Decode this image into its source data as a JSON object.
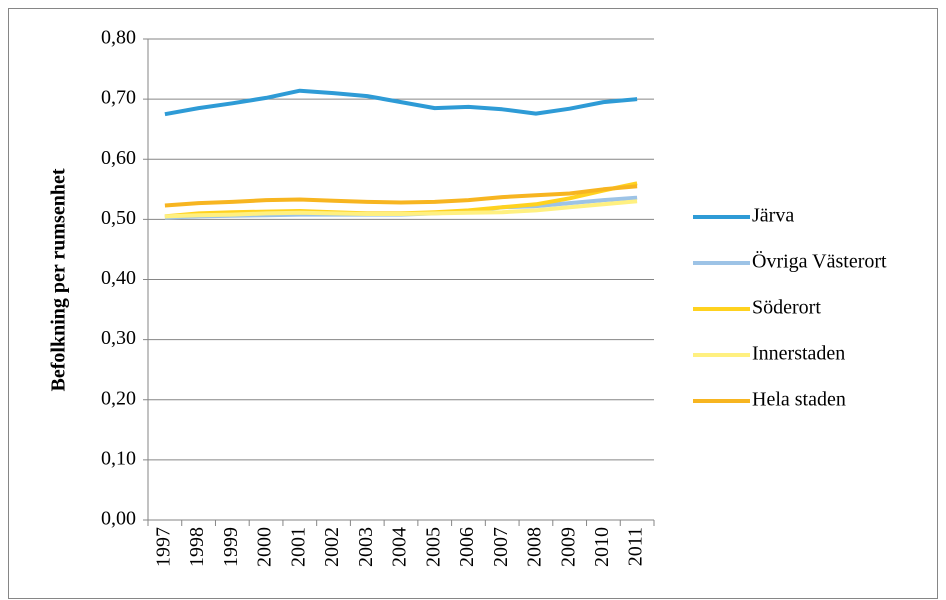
{
  "chart_data": {
    "type": "line",
    "y_label": "Befolkning per rumsenhet",
    "categories": [
      "1997",
      "1998",
      "1999",
      "2000",
      "2001",
      "2002",
      "2003",
      "2004",
      "2005",
      "2006",
      "2007",
      "2008",
      "2009",
      "2010",
      "2011"
    ],
    "series": [
      {
        "name": "Järva",
        "color": "#2e9bd6",
        "values": [
          0.675,
          0.685,
          0.693,
          0.702,
          0.714,
          0.71,
          0.705,
          0.695,
          0.685,
          0.687,
          0.683,
          0.676,
          0.684,
          0.695,
          0.7
        ]
      },
      {
        "name": "Övriga Västerort",
        "color": "#9dc3e6",
        "values": [
          0.503,
          0.505,
          0.506,
          0.507,
          0.508,
          0.508,
          0.508,
          0.508,
          0.51,
          0.513,
          0.52,
          0.522,
          0.527,
          0.532,
          0.536
        ]
      },
      {
        "name": "Söderort",
        "color": "#ffd21f",
        "values": [
          0.505,
          0.51,
          0.512,
          0.513,
          0.514,
          0.512,
          0.51,
          0.51,
          0.512,
          0.515,
          0.52,
          0.525,
          0.535,
          0.548,
          0.56
        ]
      },
      {
        "name": "Innerstaden",
        "color": "#fff080",
        "values": [
          0.505,
          0.507,
          0.508,
          0.51,
          0.511,
          0.51,
          0.509,
          0.509,
          0.51,
          0.511,
          0.512,
          0.515,
          0.52,
          0.525,
          0.53
        ]
      },
      {
        "name": "Hela staden",
        "color": "#f7b520",
        "values": [
          0.523,
          0.527,
          0.529,
          0.532,
          0.533,
          0.531,
          0.529,
          0.528,
          0.529,
          0.532,
          0.537,
          0.54,
          0.543,
          0.55,
          0.555
        ]
      }
    ],
    "ylim": [
      0,
      0.8
    ],
    "yticks": [
      {
        "value": 0,
        "label": "0,00"
      },
      {
        "value": 0.1,
        "label": "0,10"
      },
      {
        "value": 0.2,
        "label": "0,20"
      },
      {
        "value": 0.3,
        "label": "0,30"
      },
      {
        "value": 0.4,
        "label": "0,40"
      },
      {
        "value": 0.5,
        "label": "0,50"
      },
      {
        "value": 0.6,
        "label": "0,60"
      },
      {
        "value": 0.7,
        "label": "0,70"
      },
      {
        "value": 0.8,
        "label": "0,80"
      }
    ],
    "grid": true,
    "legend": "right"
  }
}
